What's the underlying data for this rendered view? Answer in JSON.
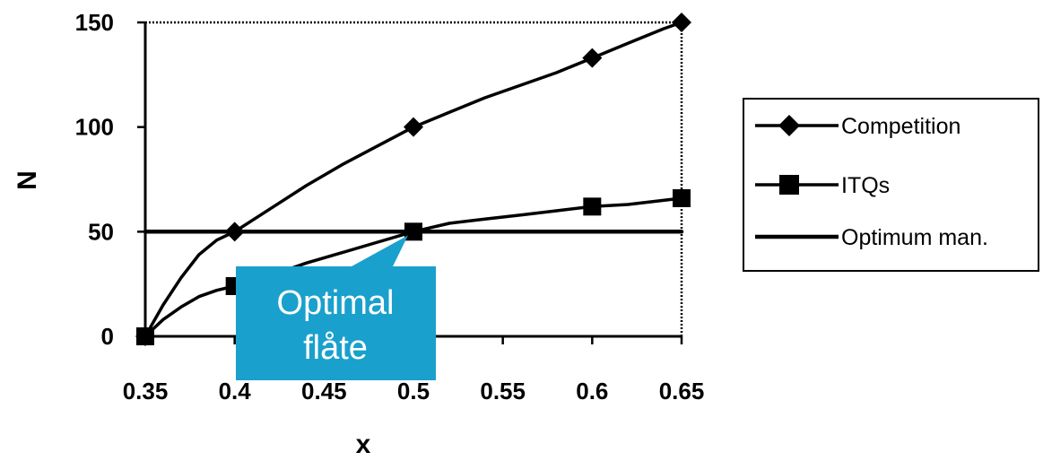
{
  "chart_data": {
    "type": "line",
    "x": [
      0.35,
      0.4,
      0.5,
      0.6,
      0.65
    ],
    "xlim": [
      0.35,
      0.65
    ],
    "ylim": [
      0,
      150
    ],
    "xticks": [
      "0.35",
      "0.4",
      "0.45",
      "0.5",
      "0.55",
      "0.6",
      "0.65"
    ],
    "xtick_values": [
      0.35,
      0.4,
      0.45,
      0.5,
      0.55,
      0.6,
      0.65
    ],
    "yticks": [
      "0",
      "50",
      "100",
      "150"
    ],
    "ytick_values": [
      0,
      50,
      100,
      150
    ],
    "xlabel": "x",
    "ylabel": "N",
    "legend_position": "right",
    "series": [
      {
        "name": "Competition",
        "marker": "diamond",
        "values": [
          0,
          50,
          100,
          133,
          150
        ],
        "curve_x": [
          0.35,
          0.36,
          0.37,
          0.38,
          0.39,
          0.4,
          0.42,
          0.44,
          0.46,
          0.48,
          0.5,
          0.52,
          0.54,
          0.56,
          0.58,
          0.6,
          0.62,
          0.64,
          0.65
        ],
        "curve_y": [
          0,
          15,
          28,
          39,
          46,
          50,
          61,
          72,
          82,
          91,
          100,
          107,
          114,
          120,
          126,
          133,
          140,
          147,
          150
        ]
      },
      {
        "name": "ITQs",
        "marker": "square",
        "values": [
          0,
          24,
          50,
          62,
          66
        ],
        "curve_x": [
          0.35,
          0.36,
          0.37,
          0.38,
          0.39,
          0.4,
          0.42,
          0.44,
          0.46,
          0.48,
          0.5,
          0.52,
          0.54,
          0.56,
          0.58,
          0.6,
          0.62,
          0.65
        ],
        "curve_y": [
          0,
          8,
          14,
          19,
          22,
          24,
          29,
          35,
          40,
          45,
          50,
          54,
          56,
          58,
          60,
          62,
          63,
          66
        ]
      },
      {
        "name": "Optimum man.",
        "marker": "none",
        "curve_x": [
          0.35,
          0.65
        ],
        "curve_y": [
          50,
          50
        ]
      }
    ],
    "annotation": {
      "lines": [
        "Optimal",
        "flåte"
      ],
      "color": "#1aa0cc",
      "points_to": [
        0.5,
        50
      ]
    }
  }
}
